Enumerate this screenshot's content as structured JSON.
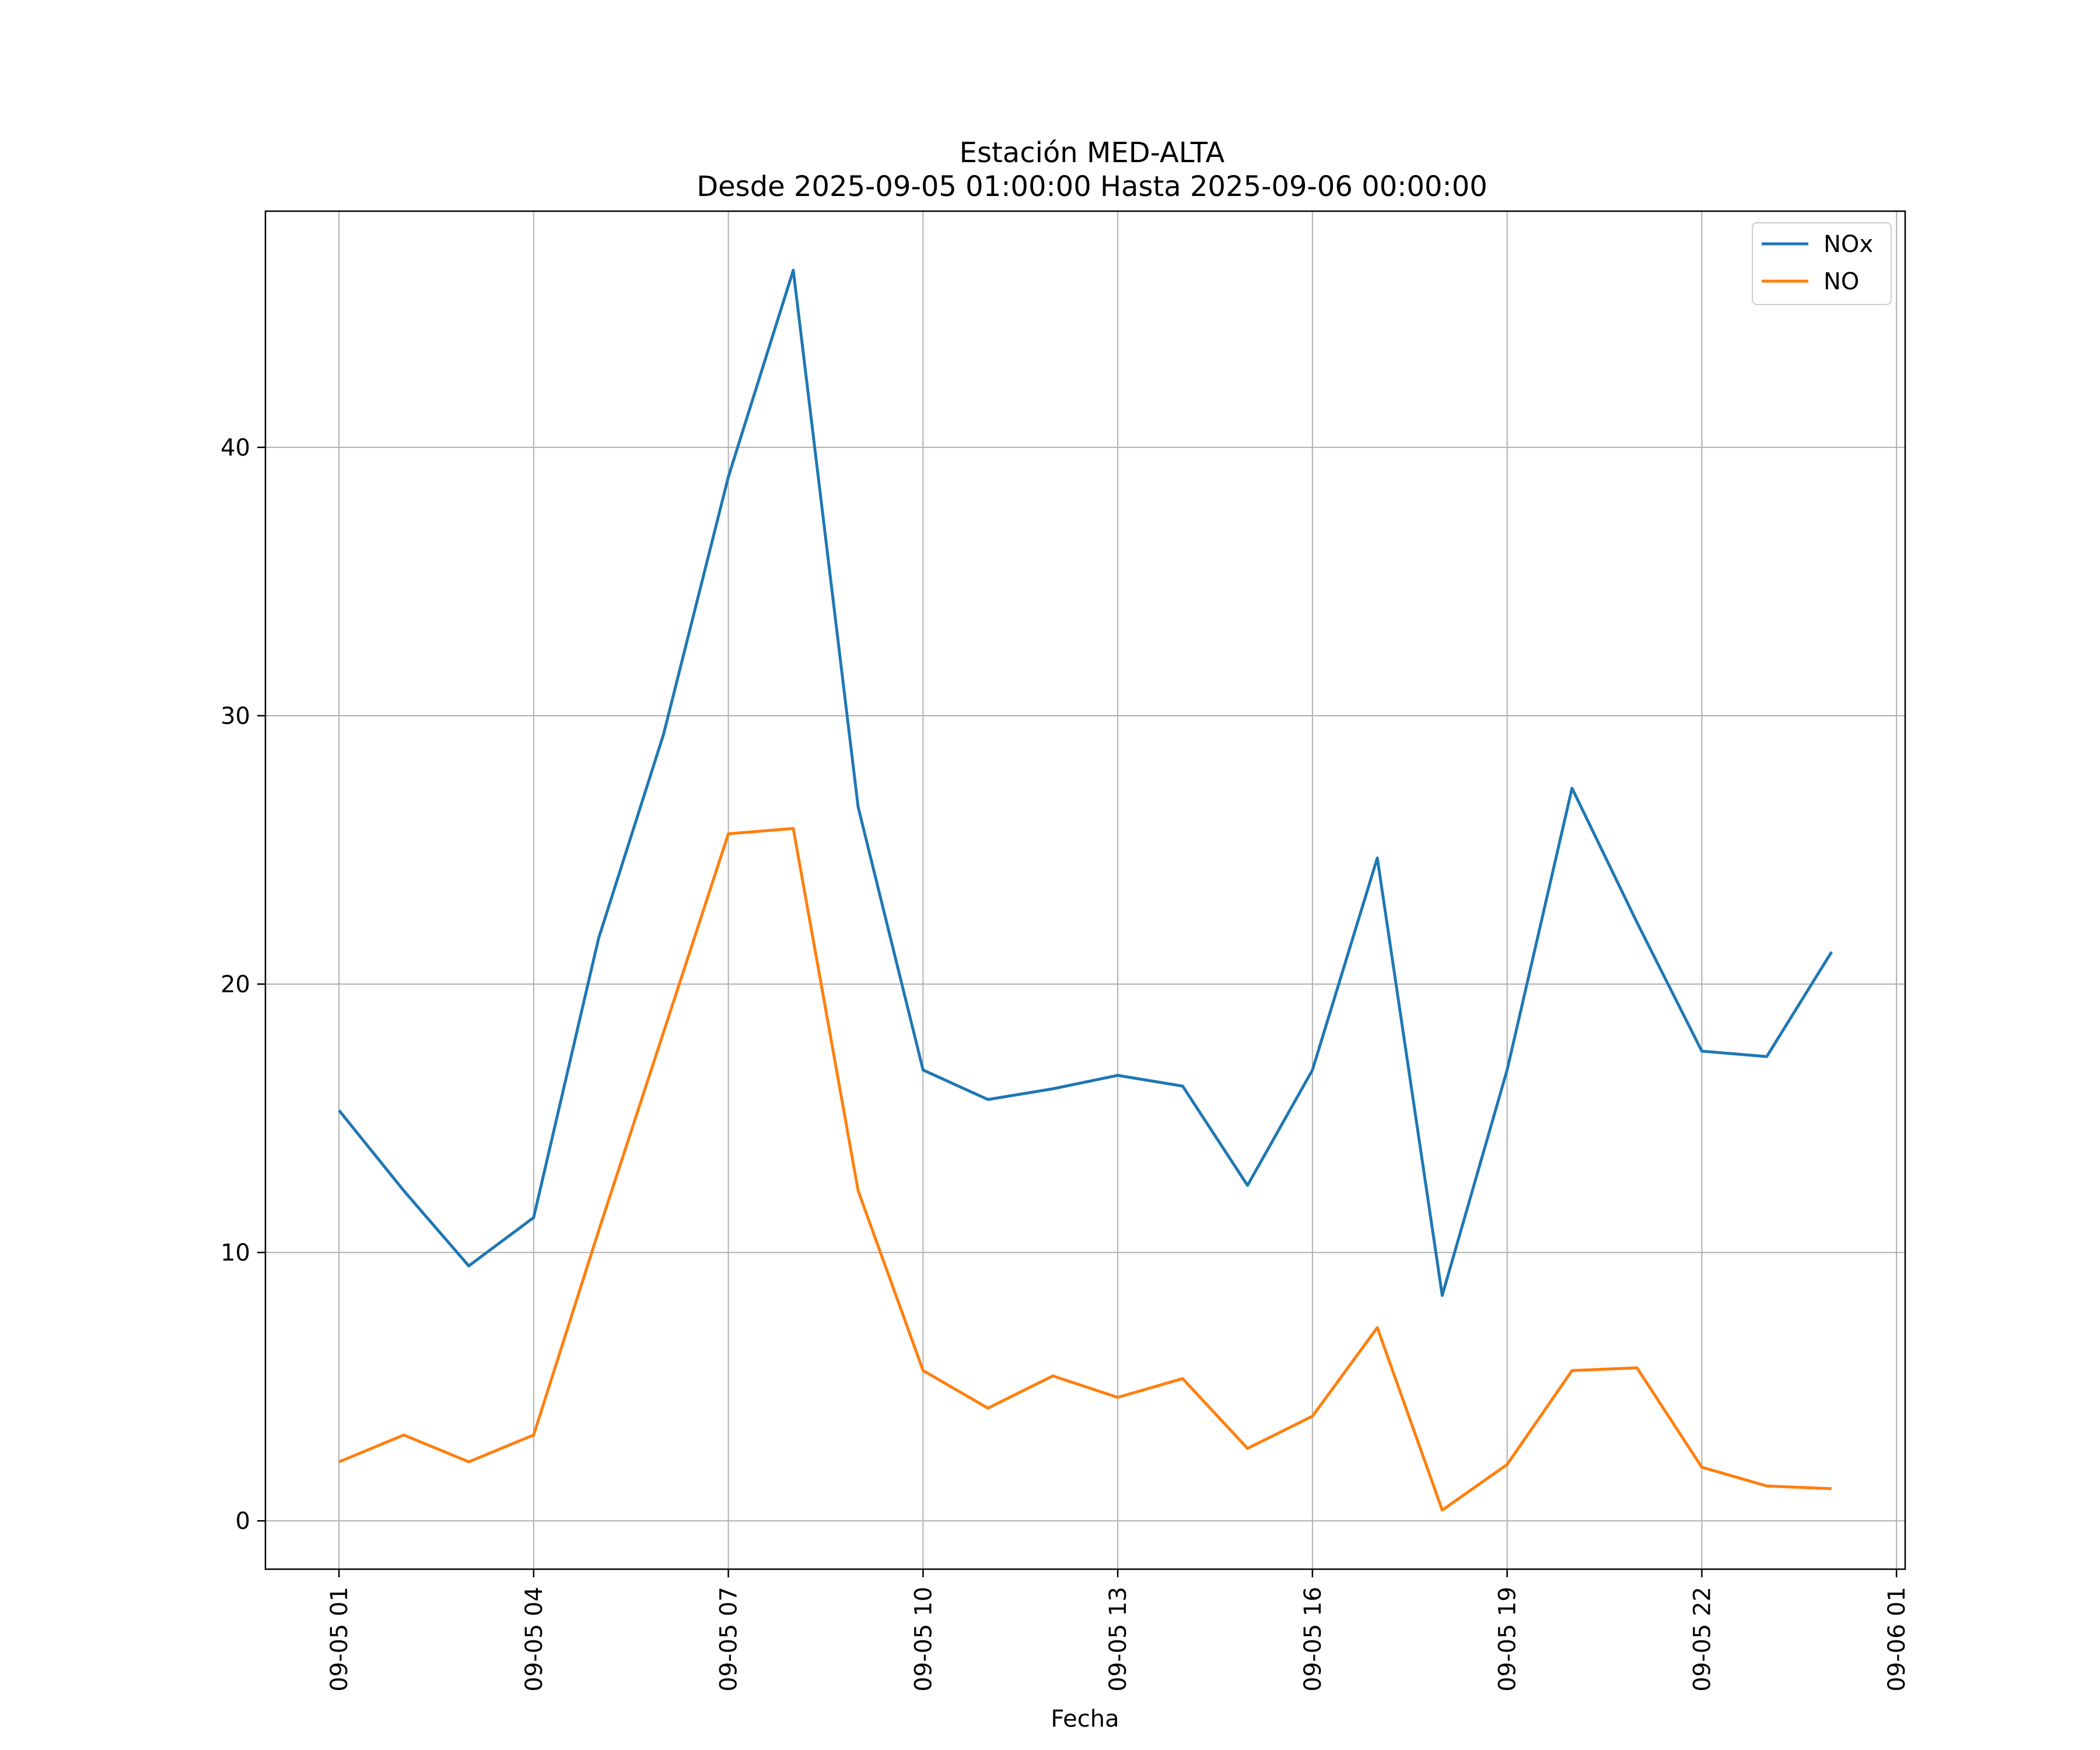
{
  "chart_data": {
    "type": "line",
    "title": "Estación MED-ALTA",
    "subtitle": "Desde 2025-09-05 01:00:00 Hasta 2025-09-06 00:00:00",
    "xlabel": "Fecha",
    "ylabel": "",
    "x": [
      "2025-09-05 01:00",
      "2025-09-05 02:00",
      "2025-09-05 03:00",
      "2025-09-05 04:00",
      "2025-09-05 05:00",
      "2025-09-05 06:00",
      "2025-09-05 07:00",
      "2025-09-05 08:00",
      "2025-09-05 09:00",
      "2025-09-05 10:00",
      "2025-09-05 11:00",
      "2025-09-05 12:00",
      "2025-09-05 13:00",
      "2025-09-05 14:00",
      "2025-09-05 15:00",
      "2025-09-05 16:00",
      "2025-09-05 17:00",
      "2025-09-05 18:00",
      "2025-09-05 19:00",
      "2025-09-05 20:00",
      "2025-09-05 21:00",
      "2025-09-05 22:00",
      "2025-09-05 23:00",
      "2025-09-06 00:00"
    ],
    "series": [
      {
        "name": "NOx",
        "color": "#1f77b4",
        "values": [
          15.3,
          12.3,
          9.5,
          11.3,
          21.7,
          29.3,
          38.9,
          46.6,
          26.6,
          16.8,
          15.7,
          16.1,
          16.6,
          16.2,
          12.5,
          16.8,
          24.7,
          8.4,
          16.8,
          27.3,
          22.3,
          17.5,
          17.3,
          21.2
        ]
      },
      {
        "name": "NO",
        "color": "#ff7f0e",
        "values": [
          2.2,
          3.2,
          2.2,
          3.2,
          10.8,
          18.2,
          25.6,
          25.8,
          12.3,
          5.6,
          4.2,
          5.4,
          4.6,
          5.3,
          2.7,
          3.9,
          7.2,
          0.4,
          2.1,
          5.6,
          5.7,
          2.0,
          1.3,
          1.2
        ]
      }
    ],
    "x_ticks": [
      "09-05 01",
      "09-05 04",
      "09-05 07",
      "09-05 10",
      "09-05 13",
      "09-05 16",
      "09-05 19",
      "09-05 22",
      "09-06 01"
    ],
    "y_ticks": [
      "0",
      "10",
      "20",
      "30",
      "40"
    ],
    "x_range": [
      "2025-09-04 23:52",
      "2025-09-06 01:08"
    ],
    "ylim": [
      -1.8,
      48.8
    ],
    "grid": true,
    "legend_position": "top-right"
  }
}
